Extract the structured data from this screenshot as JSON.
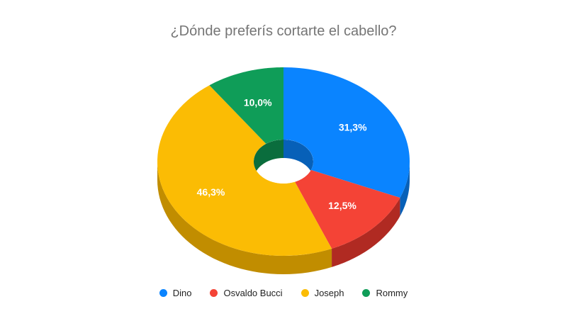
{
  "chart_data": {
    "type": "pie",
    "variant": "3d-donut",
    "title": "¿Dónde preferís cortarte el cabello?",
    "legend_position": "bottom",
    "categories": [
      "Dino",
      "Osvaldo Bucci",
      "Joseph",
      "Rommy"
    ],
    "values": [
      31.3,
      12.5,
      46.3,
      10.0
    ],
    "labels": [
      "31,3%",
      "12,5%",
      "46,3%",
      "10,0%"
    ],
    "colors": [
      "#0a84ff",
      "#f44336",
      "#fbbc04",
      "#0f9d58"
    ],
    "side_colors": [
      "#0760b8",
      "#b02a22",
      "#c18d00",
      "#0a6d3d"
    ]
  }
}
